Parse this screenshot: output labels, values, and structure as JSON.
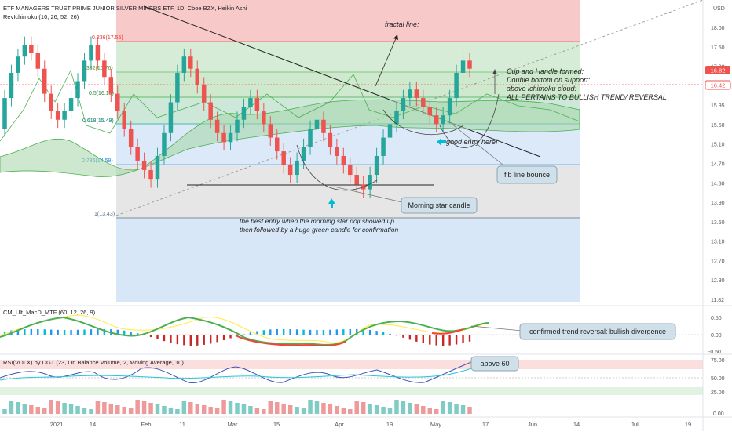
{
  "header": {
    "title": "ETF MANAGERS TRUST PRIME JUNIOR SILVER MINERS ETF, 1D, Cboe BZX, Heikin Ashi",
    "indicator": "RevIchimoku (10, 26, 52, 26)",
    "currency": "USD"
  },
  "colors": {
    "up": "#26a69a",
    "down": "#ef5350",
    "ichimoku": "#4caf50",
    "fib_red_zone": "#f8c9c9",
    "fib_green_zone": "#cfe9cf",
    "fib_blue_zone": "#dbe9f8",
    "fib_gray_zone": "#e6e6e6",
    "last_price_badge": "#ef5350",
    "annotation_arrow": "#00bcd4"
  },
  "price_axis": {
    "labels": [
      "18.00",
      "17.50",
      "17.00",
      "16.42",
      "15.95",
      "15.50",
      "15.10",
      "14.70",
      "14.30",
      "13.90",
      "13.50",
      "13.10",
      "12.70",
      "12.30",
      "11.82"
    ],
    "last_price": "16.82",
    "reference_price": "16.42"
  },
  "time_axis": {
    "labels": [
      "2021",
      "14",
      "Feb",
      "11",
      "Mar",
      "15",
      "Apr",
      "19",
      "May",
      "17",
      "Jun",
      "14",
      "Jul",
      "19"
    ]
  },
  "fib_levels": [
    {
      "label": "0.236(17.55)",
      "value": 17.55
    },
    {
      "label": "0.382(16.76)",
      "value": 16.76
    },
    {
      "label": "0.5(16.13)",
      "value": 16.13
    },
    {
      "label": "0.618(15.49)",
      "value": 15.49
    },
    {
      "label": "0.786(14.59)",
      "value": 14.59
    },
    {
      "label": "1(13.43)",
      "value": 13.43
    }
  ],
  "annotations": {
    "fractal": "fractal line:",
    "cup_handle": [
      "Cup and Handle formed:",
      "Double bottom on support:",
      "above ichimoku cloud:",
      "ALL PERTAINS TO BULLISH TREND/ REVERSAL"
    ],
    "good_entry": "good entry here!",
    "fib_bounce": "fib line bounce",
    "morning_star": "Morning star candle",
    "best_entry": [
      "the best entry when the morning star doji showed up.",
      "then followed by a huge green candle for confirmation"
    ],
    "bullish_divergence": "confirmed trend reversal: bullish divergence",
    "above_60": "above 60"
  },
  "macd_panel": {
    "title": "CM_Ult_MacD_MTF (60, 12, 26, 9)",
    "axis_labels": [
      "0.50",
      "0.00",
      "-0.50"
    ]
  },
  "rsi_panel": {
    "title": "RSI(VOLX) by DGT (23, On Balance Volume, 2, Moving Average, 10)",
    "axis_labels": [
      "75.00",
      "50.00",
      "25.00",
      "0.00"
    ]
  },
  "chart_data": {
    "type": "candlestick",
    "title": "ETF MANAGERS TRUST PRIME JUNIOR SILVER MINERS ETF, 1D, Cboe BZX, Heikin Ashi",
    "ylim": [
      11.82,
      18.2
    ],
    "yscale": "log",
    "grid": true,
    "candles": [
      {
        "o": 15.2,
        "c": 15.9
      },
      {
        "o": 15.9,
        "c": 16.5
      },
      {
        "o": 16.5,
        "c": 16.9
      },
      {
        "o": 16.9,
        "c": 17.2
      },
      {
        "o": 17.2,
        "c": 17.0
      },
      {
        "o": 17.0,
        "c": 16.6
      },
      {
        "o": 16.6,
        "c": 16.0
      },
      {
        "o": 16.0,
        "c": 15.6
      },
      {
        "o": 15.6,
        "c": 15.4
      },
      {
        "o": 15.4,
        "c": 15.6
      },
      {
        "o": 15.6,
        "c": 15.9
      },
      {
        "o": 15.9,
        "c": 16.3
      },
      {
        "o": 16.3,
        "c": 16.8
      },
      {
        "o": 16.8,
        "c": 17.2
      },
      {
        "o": 17.2,
        "c": 16.8
      },
      {
        "o": 16.8,
        "c": 16.4
      },
      {
        "o": 16.4,
        "c": 16.0
      },
      {
        "o": 16.0,
        "c": 15.6
      },
      {
        "o": 15.6,
        "c": 15.2
      },
      {
        "o": 15.2,
        "c": 14.8
      },
      {
        "o": 14.8,
        "c": 14.5
      },
      {
        "o": 14.5,
        "c": 14.3
      },
      {
        "o": 14.3,
        "c": 14.1
      },
      {
        "o": 14.1,
        "c": 14.6
      },
      {
        "o": 14.6,
        "c": 15.1
      },
      {
        "o": 15.1,
        "c": 15.8
      },
      {
        "o": 15.8,
        "c": 16.5
      },
      {
        "o": 16.5,
        "c": 16.9
      },
      {
        "o": 16.9,
        "c": 16.6
      },
      {
        "o": 16.6,
        "c": 16.2
      },
      {
        "o": 16.2,
        "c": 15.8
      },
      {
        "o": 15.8,
        "c": 15.4
      },
      {
        "o": 15.4,
        "c": 15.1
      },
      {
        "o": 15.1,
        "c": 14.9
      },
      {
        "o": 14.9,
        "c": 15.1
      },
      {
        "o": 15.1,
        "c": 15.4
      },
      {
        "o": 15.4,
        "c": 15.7
      },
      {
        "o": 15.7,
        "c": 15.9
      },
      {
        "o": 15.9,
        "c": 15.6
      },
      {
        "o": 15.6,
        "c": 15.3
      },
      {
        "o": 15.3,
        "c": 15.0
      },
      {
        "o": 15.0,
        "c": 14.7
      },
      {
        "o": 14.7,
        "c": 14.4
      },
      {
        "o": 14.4,
        "c": 14.2
      },
      {
        "o": 14.2,
        "c": 14.5
      },
      {
        "o": 14.5,
        "c": 14.8
      },
      {
        "o": 14.8,
        "c": 15.2
      },
      {
        "o": 15.2,
        "c": 15.4
      },
      {
        "o": 15.4,
        "c": 15.1
      },
      {
        "o": 15.1,
        "c": 14.8
      },
      {
        "o": 14.8,
        "c": 14.6
      },
      {
        "o": 14.6,
        "c": 14.4
      },
      {
        "o": 14.4,
        "c": 14.2
      },
      {
        "o": 14.2,
        "c": 14.0
      },
      {
        "o": 14.0,
        "c": 13.9
      },
      {
        "o": 13.9,
        "c": 14.2
      },
      {
        "o": 14.2,
        "c": 14.6
      },
      {
        "o": 14.6,
        "c": 15.0
      },
      {
        "o": 15.0,
        "c": 15.3
      },
      {
        "o": 15.3,
        "c": 15.6
      },
      {
        "o": 15.6,
        "c": 15.9
      },
      {
        "o": 15.9,
        "c": 16.1
      },
      {
        "o": 16.1,
        "c": 15.9
      },
      {
        "o": 15.9,
        "c": 15.7
      },
      {
        "o": 15.7,
        "c": 15.5
      },
      {
        "o": 15.5,
        "c": 15.3
      },
      {
        "o": 15.3,
        "c": 15.5
      },
      {
        "o": 15.5,
        "c": 15.9
      },
      {
        "o": 15.9,
        "c": 16.5
      },
      {
        "o": 16.5,
        "c": 16.8
      },
      {
        "o": 16.8,
        "c": 16.6
      }
    ]
  }
}
